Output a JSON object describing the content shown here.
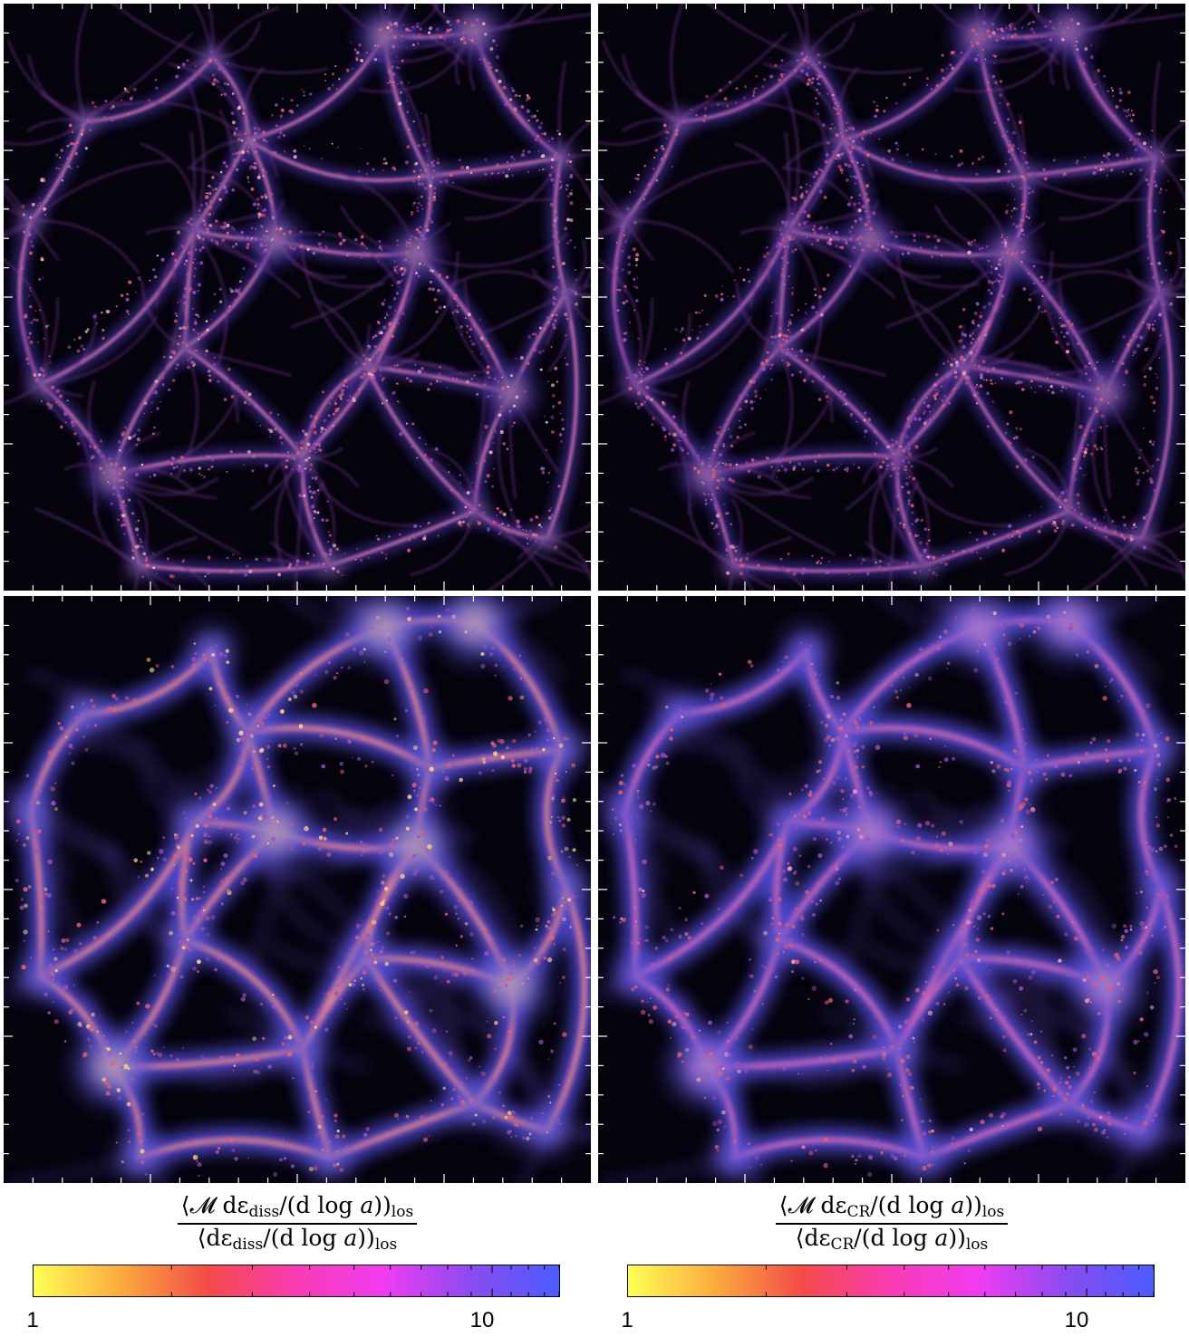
{
  "panels": [
    {
      "id": "top-left",
      "name": "dissipated-energy-map-high-res"
    },
    {
      "id": "top-right",
      "name": "cosmic-ray-energy-map-high-res"
    },
    {
      "id": "bottom-left",
      "name": "dissipated-energy-map-low-res"
    },
    {
      "id": "bottom-right",
      "name": "cosmic-ray-energy-map-low-res"
    }
  ],
  "colorbars": [
    {
      "numerator": {
        "pre": "⟨𝓜 dε",
        "sub": "diss",
        "mid": "/(d log ",
        "var": "a",
        "post": "))",
        "los": "los"
      },
      "denominator": {
        "pre": "⟨dε",
        "sub": "diss",
        "mid": "/(d log ",
        "var": "a",
        "post": "))",
        "los": "los"
      },
      "tick_min": "1",
      "tick_max": "10",
      "scale": "log",
      "range": [
        1,
        14
      ]
    },
    {
      "numerator": {
        "pre": "⟨𝓜 dε",
        "sub": "CR",
        "mid": "/(d log ",
        "var": "a",
        "post": "))",
        "los": "los"
      },
      "denominator": {
        "pre": "⟨dε",
        "sub": "CR",
        "mid": "/(d log ",
        "var": "a",
        "post": "))",
        "los": "los"
      },
      "tick_min": "1",
      "tick_max": "10",
      "scale": "log",
      "range": [
        1,
        14
      ]
    }
  ],
  "colormap": [
    "#ffff55",
    "#fbaa3e",
    "#f44a4a",
    "#f83cb4",
    "#f03cf0",
    "#8a4cf0",
    "#4a5cff"
  ]
}
